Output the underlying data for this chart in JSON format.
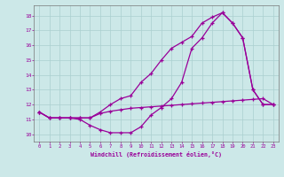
{
  "xlabel": "Windchill (Refroidissement éolien,°C)",
  "background_color": "#cce8e8",
  "grid_color": "#aacfcf",
  "line_color": "#990099",
  "x_ticks": [
    0,
    1,
    2,
    3,
    4,
    5,
    6,
    7,
    8,
    9,
    10,
    11,
    12,
    13,
    14,
    15,
    16,
    17,
    18,
    19,
    20,
    21,
    22,
    23
  ],
  "ylim": [
    9.5,
    18.7
  ],
  "xlim": [
    -0.5,
    23.5
  ],
  "line1_x": [
    0,
    1,
    2,
    3,
    4,
    5,
    6,
    7,
    8,
    9,
    10,
    11,
    12,
    13,
    14,
    15,
    16,
    17,
    18,
    19,
    20,
    21,
    22,
    23
  ],
  "line1_y": [
    11.5,
    11.1,
    11.1,
    11.1,
    11.1,
    11.1,
    11.5,
    12.0,
    12.4,
    12.6,
    13.5,
    14.1,
    15.0,
    15.8,
    16.2,
    16.6,
    17.5,
    17.9,
    18.2,
    17.5,
    16.5,
    13.0,
    12.0,
    12.0
  ],
  "line2_x": [
    0,
    1,
    2,
    3,
    4,
    5,
    6,
    7,
    8,
    9,
    10,
    11,
    12,
    13,
    14,
    15,
    16,
    17,
    18,
    19,
    20,
    21,
    22,
    23
  ],
  "line2_y": [
    11.5,
    11.1,
    11.1,
    11.1,
    11.0,
    10.6,
    10.3,
    10.1,
    10.1,
    10.1,
    10.5,
    11.3,
    11.8,
    12.4,
    13.5,
    15.8,
    16.5,
    17.5,
    18.2,
    17.5,
    16.5,
    13.0,
    12.0,
    12.0
  ],
  "line3_x": [
    0,
    1,
    2,
    3,
    4,
    5,
    6,
    7,
    8,
    9,
    10,
    11,
    12,
    13,
    14,
    15,
    16,
    17,
    18,
    19,
    20,
    21,
    22,
    23
  ],
  "line3_y": [
    11.5,
    11.1,
    11.1,
    11.1,
    11.1,
    11.1,
    11.4,
    11.55,
    11.65,
    11.75,
    11.8,
    11.85,
    11.9,
    11.95,
    12.0,
    12.05,
    12.1,
    12.15,
    12.2,
    12.25,
    12.3,
    12.35,
    12.4,
    12.0
  ]
}
